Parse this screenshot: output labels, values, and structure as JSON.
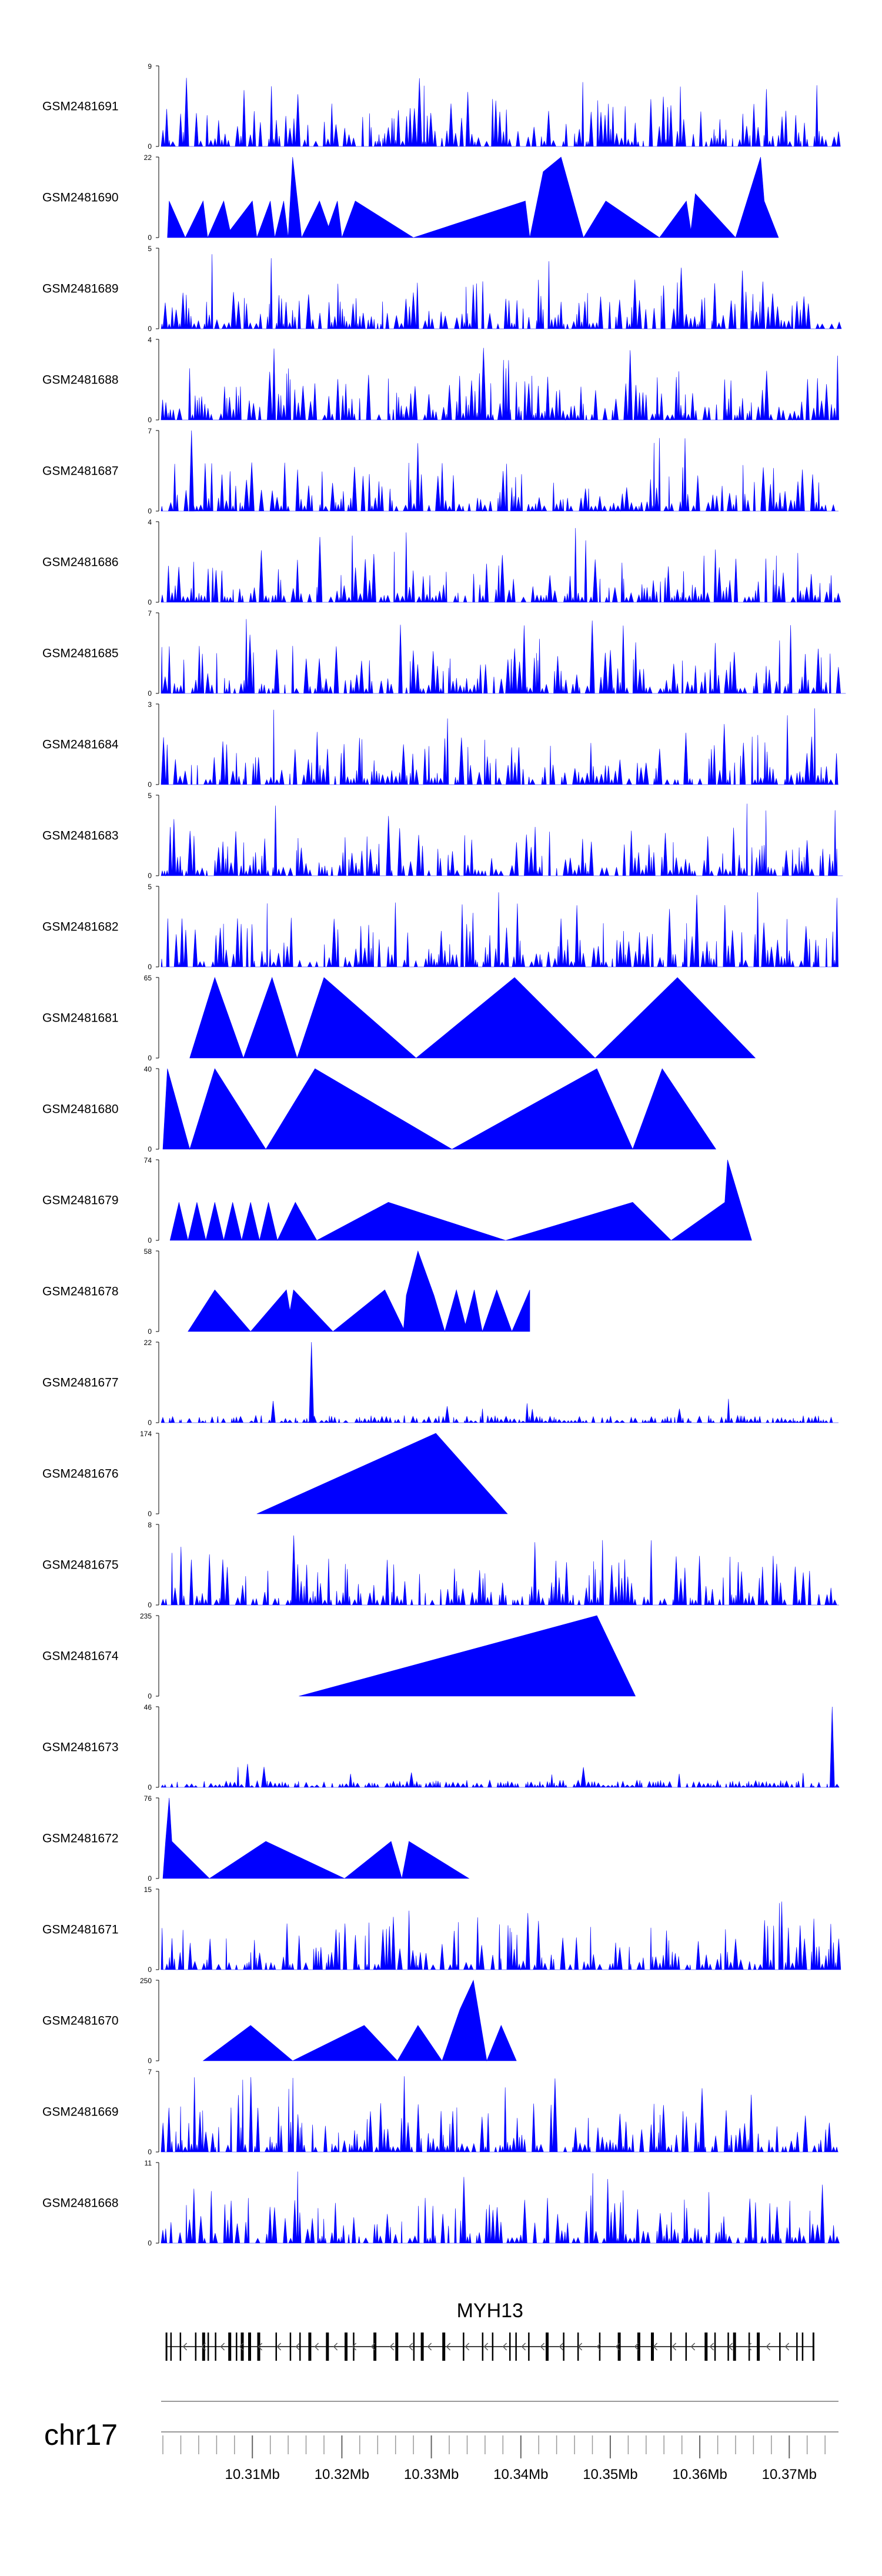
{
  "chart_data": {
    "type": "area",
    "series_color": "#0000ff",
    "tracks": [
      {
        "name": "GSM2481691",
        "ymax": "9",
        "ymin": "0",
        "ylim": [
          0,
          9
        ],
        "pattern": "dense"
      },
      {
        "name": "GSM2481690",
        "ymax": "22",
        "ymin": "0",
        "ylim": [
          0,
          22
        ],
        "pattern": "triangles",
        "peaks": [
          [
            10.3005,
            0
          ],
          [
            10.3007,
            10
          ],
          [
            10.3025,
            0
          ],
          [
            10.3045,
            10
          ],
          [
            10.305,
            0
          ],
          [
            10.3068,
            10
          ],
          [
            10.3075,
            2
          ],
          [
            10.31,
            10
          ],
          [
            10.3105,
            0
          ],
          [
            10.312,
            10
          ],
          [
            10.3125,
            0
          ],
          [
            10.3135,
            10
          ],
          [
            10.314,
            0
          ],
          [
            10.3145,
            22
          ],
          [
            10.3155,
            0
          ],
          [
            10.3175,
            10
          ],
          [
            10.3185,
            3
          ],
          [
            10.3195,
            10
          ],
          [
            10.32,
            0
          ],
          [
            10.3215,
            10
          ],
          [
            10.328,
            0
          ],
          [
            10.3405,
            10
          ],
          [
            10.341,
            0
          ],
          [
            10.3425,
            18
          ],
          [
            10.3445,
            22
          ],
          [
            10.347,
            0
          ],
          [
            10.3495,
            10
          ],
          [
            10.3555,
            0
          ],
          [
            10.3585,
            10
          ],
          [
            10.359,
            2
          ],
          [
            10.3595,
            12
          ],
          [
            10.364,
            0
          ],
          [
            10.3668,
            22
          ],
          [
            10.3672,
            10
          ],
          [
            10.3688,
            0
          ]
        ]
      },
      {
        "name": "GSM2481689",
        "ymax": "5",
        "ymin": "0",
        "ylim": [
          0,
          5
        ],
        "pattern": "dense"
      },
      {
        "name": "GSM2481688",
        "ymax": "4",
        "ymin": "0",
        "ylim": [
          0,
          4
        ],
        "pattern": "dense"
      },
      {
        "name": "GSM2481687",
        "ymax": "7",
        "ymin": "0",
        "ylim": [
          0,
          7
        ],
        "pattern": "dense",
        "spike_at": 10.3032
      },
      {
        "name": "GSM2481686",
        "ymax": "4",
        "ymin": "0",
        "ylim": [
          0,
          4
        ],
        "pattern": "dense"
      },
      {
        "name": "GSM2481685",
        "ymax": "7",
        "ymin": "0",
        "ylim": [
          0,
          7
        ],
        "pattern": "dense"
      },
      {
        "name": "GSM2481684",
        "ymax": "3",
        "ymin": "0",
        "ylim": [
          0,
          3
        ],
        "pattern": "dense"
      },
      {
        "name": "GSM2481683",
        "ymax": "5",
        "ymin": "0",
        "ylim": [
          0,
          5
        ],
        "pattern": "dense"
      },
      {
        "name": "GSM2481682",
        "ymax": "5",
        "ymin": "0",
        "ylim": [
          0,
          5
        ],
        "pattern": "dense"
      },
      {
        "name": "GSM2481681",
        "ymax": "65",
        "ymin": "0",
        "ylim": [
          0,
          65
        ],
        "pattern": "triangles",
        "peaks": [
          [
            10.303,
            0
          ],
          [
            10.3058,
            65
          ],
          [
            10.309,
            0
          ],
          [
            10.3122,
            65
          ],
          [
            10.315,
            0
          ],
          [
            10.318,
            65
          ],
          [
            10.3283,
            0
          ],
          [
            10.3393,
            65
          ],
          [
            10.3483,
            0
          ],
          [
            10.3575,
            65
          ],
          [
            10.3662,
            0
          ]
        ]
      },
      {
        "name": "GSM2481680",
        "ymax": "40",
        "ymin": "0",
        "ylim": [
          0,
          40
        ],
        "pattern": "triangles",
        "peaks": [
          [
            10.3,
            0
          ],
          [
            10.3005,
            40
          ],
          [
            10.303,
            0
          ],
          [
            10.3058,
            40
          ],
          [
            10.3115,
            0
          ],
          [
            10.317,
            40
          ],
          [
            10.3323,
            0
          ],
          [
            10.3485,
            40
          ],
          [
            10.3525,
            0
          ],
          [
            10.3558,
            40
          ],
          [
            10.3618,
            0
          ]
        ]
      },
      {
        "name": "GSM2481679",
        "ymax": "74",
        "ymin": "0",
        "ylim": [
          0,
          74
        ],
        "pattern": "triangles",
        "peaks": [
          [
            10.3008,
            0
          ],
          [
            10.3018,
            35
          ],
          [
            10.3028,
            0
          ],
          [
            10.3038,
            35
          ],
          [
            10.3048,
            0
          ],
          [
            10.3058,
            35
          ],
          [
            10.3068,
            0
          ],
          [
            10.3078,
            35
          ],
          [
            10.3088,
            0
          ],
          [
            10.3098,
            35
          ],
          [
            10.3108,
            0
          ],
          [
            10.3118,
            35
          ],
          [
            10.3128,
            0
          ],
          [
            10.3148,
            35
          ],
          [
            10.3172,
            0
          ],
          [
            10.3252,
            35
          ],
          [
            10.3383,
            0
          ],
          [
            10.3525,
            35
          ],
          [
            10.3568,
            0
          ],
          [
            10.3628,
            35
          ],
          [
            10.3631,
            74
          ],
          [
            10.3658,
            0
          ]
        ]
      },
      {
        "name": "GSM2481678",
        "ymax": "58",
        "ymin": "0",
        "ylim": [
          0,
          58
        ],
        "pattern": "triangles",
        "peaks": [
          [
            10.3028,
            0
          ],
          [
            10.3058,
            30
          ],
          [
            10.3098,
            0
          ],
          [
            10.3138,
            30
          ],
          [
            10.3142,
            15
          ],
          [
            10.3146,
            30
          ],
          [
            10.319,
            0
          ],
          [
            10.3248,
            30
          ],
          [
            10.3269,
            2
          ],
          [
            10.3272,
            26
          ],
          [
            10.3285,
            58
          ],
          [
            10.3303,
            26
          ],
          [
            10.3315,
            0
          ],
          [
            10.3328,
            30
          ],
          [
            10.3338,
            5
          ],
          [
            10.3348,
            30
          ],
          [
            10.3357,
            0
          ],
          [
            10.3373,
            30
          ],
          [
            10.339,
            0
          ],
          [
            10.341,
            30
          ]
        ]
      },
      {
        "name": "GSM2481677",
        "ymax": "22",
        "ymin": "0",
        "ylim": [
          0,
          22
        ],
        "pattern": "low",
        "spike_at": 10.3166
      },
      {
        "name": "GSM2481676",
        "ymax": "174",
        "ymin": "0",
        "ylim": [
          0,
          174
        ],
        "pattern": "triangles",
        "peaks": [
          [
            10.3105,
            0
          ],
          [
            10.3305,
            174
          ],
          [
            10.3385,
            0
          ]
        ]
      },
      {
        "name": "GSM2481675",
        "ymax": "8",
        "ymin": "0",
        "ylim": [
          0,
          8
        ],
        "pattern": "dense"
      },
      {
        "name": "GSM2481674",
        "ymax": "235",
        "ymin": "0",
        "ylim": [
          0,
          235
        ],
        "pattern": "triangles",
        "peaks": [
          [
            10.3152,
            0
          ],
          [
            10.3485,
            235
          ],
          [
            10.3528,
            0
          ]
        ]
      },
      {
        "name": "GSM2481673",
        "ymax": "46",
        "ymin": "0",
        "ylim": [
          0,
          46
        ],
        "pattern": "low",
        "spike_at": 10.3748
      },
      {
        "name": "GSM2481672",
        "ymax": "76",
        "ymin": "0",
        "ylim": [
          0,
          76
        ],
        "pattern": "triangles",
        "peaks": [
          [
            10.3,
            0
          ],
          [
            10.3003,
            35
          ],
          [
            10.3007,
            76
          ],
          [
            10.301,
            35
          ],
          [
            10.3052,
            0
          ],
          [
            10.3115,
            35
          ],
          [
            10.3203,
            0
          ],
          [
            10.3255,
            35
          ],
          [
            10.3267,
            0
          ],
          [
            10.3275,
            35
          ],
          [
            10.3342,
            0
          ]
        ]
      },
      {
        "name": "GSM2481671",
        "ymax": "15",
        "ymin": "0",
        "ylim": [
          0,
          15
        ],
        "pattern": "dense"
      },
      {
        "name": "GSM2481670",
        "ymax": "250",
        "ymin": "0",
        "ylim": [
          0,
          250
        ],
        "pattern": "triangles",
        "peaks": [
          [
            10.3045,
            0
          ],
          [
            10.3098,
            110
          ],
          [
            10.3145,
            0
          ],
          [
            10.3225,
            110
          ],
          [
            10.3262,
            0
          ],
          [
            10.3285,
            110
          ],
          [
            10.3312,
            0
          ],
          [
            10.3332,
            160
          ],
          [
            10.3347,
            250
          ],
          [
            10.3362,
            0
          ],
          [
            10.3378,
            110
          ],
          [
            10.3395,
            0
          ]
        ]
      },
      {
        "name": "GSM2481669",
        "ymax": "7",
        "ymin": "0",
        "ylim": [
          0,
          7
        ],
        "pattern": "dense"
      },
      {
        "name": "GSM2481668",
        "ymax": "11",
        "ymin": "0",
        "ylim": [
          0,
          11
        ],
        "pattern": "dense"
      }
    ],
    "gene": {
      "name": "MYH13",
      "strand": "-",
      "start": 10.3003,
      "end": 10.3728
    },
    "axis": {
      "chromosome": "chr17",
      "range_mb": [
        10.2998,
        10.3755
      ],
      "labeled_ticks": [
        10.31,
        10.32,
        10.33,
        10.34,
        10.35,
        10.36,
        10.37
      ],
      "tick_labels": [
        "10.31Mb",
        "10.32Mb",
        "10.33Mb",
        "10.34Mb",
        "10.35Mb",
        "10.36Mb",
        "10.37Mb"
      ],
      "minor_step_mb": 0.002
    }
  }
}
